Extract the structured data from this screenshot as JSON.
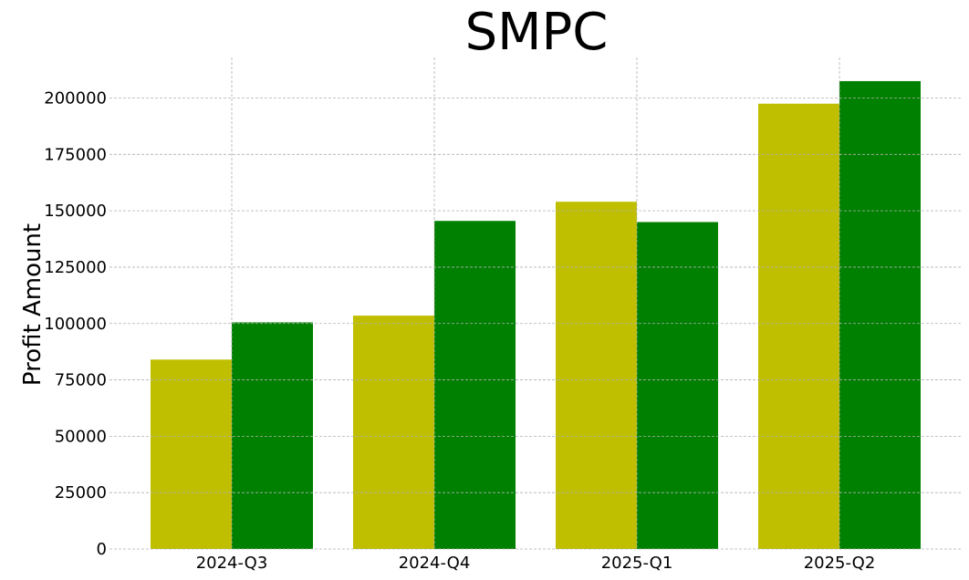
{
  "chart_data": {
    "type": "bar",
    "title": "SMPC",
    "xlabel": "",
    "ylabel": "Profit Amount",
    "categories": [
      "2024-Q3",
      "2024-Q4",
      "2025-Q1",
      "2025-Q2"
    ],
    "series": [
      {
        "color": "#bfbf00",
        "values": [
          84000,
          103500,
          154000,
          197500
        ]
      },
      {
        "color": "#008000",
        "values": [
          100500,
          145500,
          145000,
          207500
        ]
      }
    ],
    "ylim": [
      0,
      218000
    ],
    "yticks": [
      0,
      25000,
      50000,
      75000,
      100000,
      125000,
      150000,
      175000,
      200000
    ],
    "grid": true,
    "legend": "none"
  }
}
